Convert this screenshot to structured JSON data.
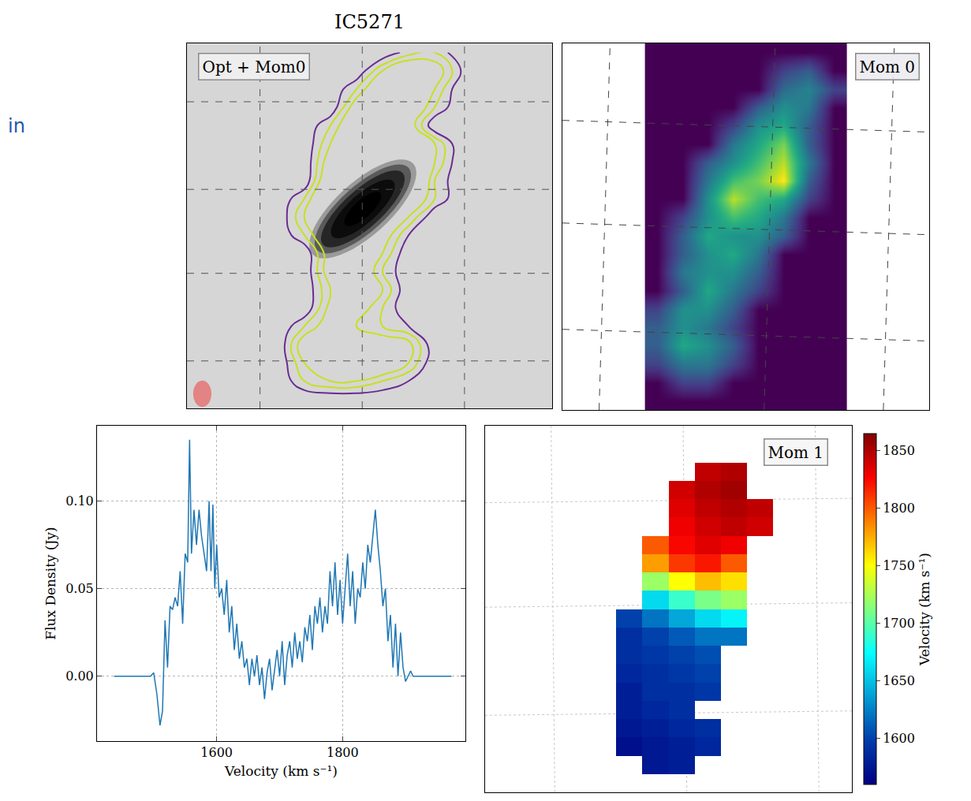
{
  "chart_data": [
    {
      "type": "contour",
      "title": "IC5271",
      "label": "Opt + Mom0",
      "annotations": [
        "in"
      ],
      "grid": true,
      "tick_labels": false,
      "levels": [
        0.1,
        0.2,
        0.3
      ],
      "colors": [
        "#6a2c91",
        "#2a8fa0",
        "#c8e020"
      ],
      "z": [
        [
          0,
          0,
          0,
          0,
          0,
          0,
          0,
          0,
          0.15,
          0.2,
          0,
          0,
          0,
          0
        ],
        [
          0,
          0,
          0,
          0,
          0,
          0,
          0,
          0.3,
          0.5,
          0.4,
          0.1,
          0,
          0,
          0
        ],
        [
          0,
          0,
          0,
          0,
          0,
          0,
          0.2,
          0.5,
          0.6,
          0.3,
          0,
          0,
          0,
          0
        ],
        [
          0,
          0,
          0,
          0,
          0,
          0,
          0.4,
          0.6,
          0.5,
          0.2,
          0,
          0,
          0,
          0
        ],
        [
          0,
          0,
          0,
          0,
          0,
          0.2,
          0.5,
          0.7,
          0.4,
          0,
          0,
          0,
          0,
          0
        ],
        [
          0,
          0,
          0,
          0,
          0,
          0.3,
          0.6,
          0.8,
          0.6,
          0.3,
          0,
          0,
          0,
          0
        ],
        [
          0,
          0,
          0,
          0,
          0,
          0.4,
          0.7,
          0.9,
          0.8,
          0.3,
          0,
          0,
          0,
          0
        ],
        [
          0,
          0,
          0,
          0,
          0,
          0.5,
          0.9,
          1.0,
          0.7,
          0.2,
          0,
          0,
          0,
          0
        ],
        [
          0,
          0,
          0,
          0,
          0.2,
          0.6,
          0.8,
          0.7,
          0.5,
          0.2,
          0,
          0,
          0,
          0
        ],
        [
          0,
          0,
          0,
          0,
          0.3,
          0.7,
          0.6,
          0.5,
          0.3,
          0,
          0,
          0,
          0,
          0
        ],
        [
          0,
          0,
          0,
          0,
          0.2,
          0.5,
          0.6,
          0.4,
          0.1,
          0,
          0,
          0,
          0,
          0
        ],
        [
          0,
          0,
          0,
          0,
          0,
          0.4,
          0.5,
          0.3,
          0,
          0,
          0,
          0,
          0,
          0
        ],
        [
          0,
          0,
          0,
          0,
          0,
          0.4,
          0.5,
          0.2,
          0,
          0,
          0,
          0,
          0,
          0
        ],
        [
          0,
          0,
          0,
          0,
          0,
          0.3,
          0.5,
          0.3,
          0,
          0,
          0,
          0,
          0,
          0
        ],
        [
          0,
          0,
          0,
          0,
          0,
          0.35,
          0.4,
          0.2,
          0,
          0,
          0,
          0,
          0,
          0
        ],
        [
          0,
          0,
          0,
          0,
          0.2,
          0.4,
          0.3,
          0.2,
          0.1,
          0,
          0,
          0,
          0,
          0
        ],
        [
          0,
          0,
          0,
          0,
          0.4,
          0.5,
          0.5,
          0.4,
          0.35,
          0,
          0,
          0,
          0,
          0
        ],
        [
          0,
          0,
          0,
          0,
          0.3,
          0.5,
          0.6,
          0.5,
          0.3,
          0,
          0,
          0,
          0,
          0
        ],
        [
          0,
          0,
          0,
          0,
          0.2,
          0.3,
          0.3,
          0.2,
          0.1,
          0,
          0,
          0,
          0,
          0
        ],
        [
          0,
          0,
          0,
          0,
          0,
          0,
          0,
          0,
          0,
          0,
          0,
          0,
          0,
          0
        ]
      ]
    },
    {
      "type": "heatmap",
      "label": "Mom 0",
      "grid": true,
      "tick_labels": false,
      "zlim": [
        0,
        1
      ],
      "z": [
        [
          0,
          0,
          0,
          0,
          0,
          0,
          0,
          0
        ],
        [
          0,
          0,
          0,
          0,
          0,
          0.2,
          0.3,
          0
        ],
        [
          0,
          0,
          0,
          0,
          0,
          0.35,
          0.45,
          0.2
        ],
        [
          0,
          0,
          0,
          0,
          0.3,
          0.5,
          0.4,
          0
        ],
        [
          0,
          0,
          0,
          0.2,
          0.5,
          0.6,
          0.3,
          0
        ],
        [
          0,
          0,
          0,
          0.4,
          0.6,
          0.8,
          0.3,
          0
        ],
        [
          0,
          0,
          0.3,
          0.5,
          0.7,
          0.9,
          0.4,
          0
        ],
        [
          0,
          0,
          0.4,
          0.7,
          0.8,
          1.0,
          0.3,
          0
        ],
        [
          0,
          0,
          0.5,
          0.9,
          0.7,
          0.6,
          0.2,
          0
        ],
        [
          0,
          0.2,
          0.5,
          0.7,
          0.6,
          0.4,
          0,
          0
        ],
        [
          0,
          0.3,
          0.6,
          0.5,
          0.5,
          0.3,
          0,
          0
        ],
        [
          0,
          0.3,
          0.5,
          0.6,
          0.4,
          0,
          0,
          0
        ],
        [
          0,
          0.4,
          0.5,
          0.5,
          0.3,
          0,
          0,
          0
        ],
        [
          0,
          0.3,
          0.6,
          0.4,
          0.2,
          0,
          0,
          0
        ],
        [
          0.2,
          0.5,
          0.5,
          0.3,
          0,
          0,
          0,
          0
        ],
        [
          0.3,
          0.5,
          0.4,
          0.2,
          0,
          0,
          0,
          0
        ],
        [
          0.3,
          0.6,
          0.5,
          0.3,
          0,
          0,
          0,
          0
        ],
        [
          0.2,
          0.4,
          0.4,
          0.2,
          0,
          0,
          0,
          0
        ],
        [
          0,
          0.2,
          0.2,
          0,
          0,
          0,
          0,
          0
        ],
        [
          0,
          0,
          0,
          0,
          0,
          0,
          0,
          0
        ]
      ]
    },
    {
      "type": "line",
      "xlabel": "Velocity (km s⁻¹)",
      "ylabel": "Flux Density (Jy)",
      "color": "#1f77b4",
      "grid": true,
      "xlim": [
        1410,
        1995
      ],
      "xticks": [
        1600,
        1800
      ],
      "ylim": [
        -0.037,
        0.143
      ],
      "yticks": [
        {
          "value": 0,
          "label": "0.00"
        },
        {
          "value": 0.05,
          "label": "0.05"
        },
        {
          "value": 0.1,
          "label": "0.10"
        }
      ],
      "x": [
        1437,
        1495,
        1500,
        1505,
        1510,
        1514,
        1518,
        1522,
        1526,
        1530,
        1534,
        1538,
        1542,
        1546,
        1550,
        1554,
        1557,
        1560,
        1564,
        1568,
        1572,
        1576,
        1580,
        1584,
        1588,
        1591,
        1594,
        1597,
        1600,
        1604,
        1608,
        1612,
        1616,
        1620,
        1624,
        1628,
        1632,
        1636,
        1640,
        1644,
        1648,
        1652,
        1656,
        1660,
        1664,
        1668,
        1672,
        1676,
        1680,
        1684,
        1688,
        1692,
        1696,
        1700,
        1704,
        1708,
        1712,
        1716,
        1720,
        1724,
        1728,
        1732,
        1736,
        1740,
        1744,
        1748,
        1752,
        1756,
        1760,
        1764,
        1768,
        1772,
        1776,
        1780,
        1784,
        1788,
        1792,
        1796,
        1800,
        1804,
        1808,
        1812,
        1816,
        1820,
        1824,
        1828,
        1832,
        1836,
        1840,
        1844,
        1848,
        1852,
        1856,
        1860,
        1864,
        1868,
        1872,
        1876,
        1880,
        1884,
        1888,
        1892,
        1896,
        1900,
        1904,
        1908,
        1912,
        1973
      ],
      "values": [
        0,
        0,
        0.002,
        -0.01,
        -0.028,
        -0.02,
        0.032,
        0.005,
        0.04,
        0.038,
        0.045,
        0.04,
        0.06,
        0.03,
        0.07,
        0.065,
        0.135,
        0.07,
        0.095,
        0.075,
        0.095,
        0.08,
        0.07,
        0.06,
        0.1,
        0.06,
        0.098,
        0.05,
        0.075,
        0.045,
        0.05,
        0.035,
        0.055,
        0.025,
        0.04,
        0.015,
        0.03,
        0.01,
        0.02,
        0.005,
        0.01,
        -0.005,
        0.01,
        0,
        0.012,
        -0.005,
        0.005,
        -0.013,
        0.002,
        0.01,
        -0.008,
        0.005,
        0.015,
        0,
        0.02,
        -0.005,
        0.012,
        0.02,
        0.005,
        0.025,
        0.01,
        0.02,
        0.008,
        0.028,
        0.02,
        0.035,
        0.015,
        0.04,
        0.03,
        0.045,
        0.025,
        0.04,
        0.03,
        0.06,
        0.04,
        0.065,
        0.035,
        0.055,
        0.03,
        0.05,
        0.07,
        0.04,
        0.06,
        0.03,
        0.05,
        0.045,
        0.065,
        0.05,
        0.075,
        0.065,
        0.08,
        0.095,
        0.075,
        0.06,
        0.04,
        0.05,
        0.02,
        0.035,
        0.005,
        0.03,
        0,
        0.025,
        0.005,
        -0.003,
        0,
        0.003,
        0,
        0
      ]
    },
    {
      "type": "heatmap",
      "label": "Mom 1",
      "grid": true,
      "tick_labels": false,
      "zlim": [
        1560,
        1865
      ],
      "zticks": [
        1600,
        1650,
        1700,
        1750,
        1800,
        1850
      ],
      "colorbar_title": "Velocity (km s⁻¹)",
      "z": [
        [
          null,
          null,
          null,
          null,
          null,
          null,
          null,
          null,
          null,
          null,
          null,
          null,
          null,
          null
        ],
        [
          null,
          null,
          null,
          null,
          null,
          null,
          null,
          null,
          null,
          null,
          null,
          null,
          null,
          null
        ],
        [
          null,
          null,
          null,
          null,
          null,
          null,
          null,
          null,
          1845,
          1850,
          null,
          null,
          null,
          null
        ],
        [
          null,
          null,
          null,
          null,
          null,
          null,
          null,
          1840,
          1850,
          1855,
          null,
          null,
          null,
          null
        ],
        [
          null,
          null,
          null,
          null,
          null,
          null,
          null,
          1835,
          1845,
          1850,
          1845,
          null,
          null,
          null
        ],
        [
          null,
          null,
          null,
          null,
          null,
          null,
          null,
          1830,
          1840,
          1845,
          1840,
          null,
          null,
          null
        ],
        [
          null,
          null,
          null,
          null,
          null,
          null,
          1800,
          1825,
          1835,
          1830,
          null,
          null,
          null,
          null
        ],
        [
          null,
          null,
          null,
          null,
          null,
          null,
          1780,
          1810,
          1820,
          1800,
          null,
          null,
          null,
          null
        ],
        [
          null,
          null,
          null,
          null,
          null,
          null,
          1720,
          1750,
          1770,
          1760,
          null,
          null,
          null,
          null
        ],
        [
          null,
          null,
          null,
          null,
          null,
          null,
          1660,
          1690,
          1710,
          1720,
          null,
          null,
          null,
          null
        ],
        [
          null,
          null,
          null,
          null,
          null,
          1600,
          1620,
          1640,
          1660,
          1670,
          null,
          null,
          null,
          null
        ],
        [
          null,
          null,
          null,
          null,
          null,
          1590,
          1600,
          1610,
          1620,
          1620,
          null,
          null,
          null,
          null
        ],
        [
          null,
          null,
          null,
          null,
          null,
          1590,
          1595,
          1600,
          1605,
          null,
          null,
          null,
          null,
          null
        ],
        [
          null,
          null,
          null,
          null,
          null,
          1585,
          1590,
          1595,
          1600,
          null,
          null,
          null,
          null,
          null
        ],
        [
          null,
          null,
          null,
          null,
          null,
          1580,
          1590,
          1590,
          1595,
          null,
          null,
          null,
          null,
          null
        ],
        [
          null,
          null,
          null,
          null,
          null,
          1580,
          1585,
          1590,
          null,
          null,
          null,
          null,
          null,
          null
        ],
        [
          null,
          null,
          null,
          null,
          null,
          1575,
          1580,
          1585,
          1590,
          null,
          null,
          null,
          null,
          null
        ],
        [
          null,
          null,
          null,
          null,
          null,
          1570,
          1575,
          1580,
          1585,
          null,
          null,
          null,
          null,
          null
        ],
        [
          null,
          null,
          null,
          null,
          null,
          null,
          1575,
          1580,
          null,
          null,
          null,
          null,
          null,
          null
        ],
        [
          null,
          null,
          null,
          null,
          null,
          null,
          null,
          null,
          null,
          null,
          null,
          null,
          null,
          null
        ]
      ]
    }
  ]
}
